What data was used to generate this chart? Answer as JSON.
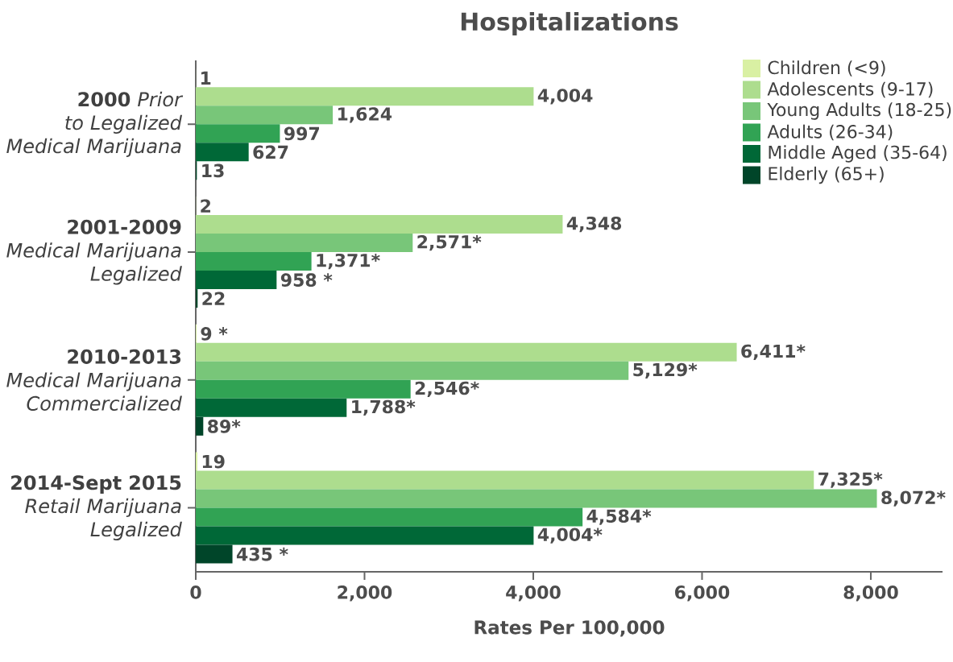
{
  "chart_data": {
    "type": "bar",
    "orientation": "horizontal",
    "title": "Hospitalizations",
    "xlabel": "Rates Per 100,000",
    "categories": [
      "**2000** *Prior to Legalized Medical Marijuana*",
      "**2001-2009** *Medical Marijuana Legalized*",
      "**2010-2013** *Medical Marijuana Commercialized*",
      "**2014-Sept 2015** *Retail Marijuana Legalized*"
    ],
    "series": [
      {
        "name": "Children (<9)",
        "color": "#d9f0a3",
        "values": [
          1,
          2,
          9,
          19
        ],
        "value_labels": [
          "1",
          "2",
          "9 *",
          "19"
        ]
      },
      {
        "name": "Adolescents (9-17)",
        "color": "#addd8e",
        "values": [
          4004,
          4348,
          6411,
          7325
        ],
        "value_labels": [
          "4,004",
          "4,348",
          "6,411*",
          "7,325*"
        ]
      },
      {
        "name": "Young Adults (18-25)",
        "color": "#78c679",
        "values": [
          1624,
          2571,
          5129,
          8072
        ],
        "value_labels": [
          "1,624",
          "2,571*",
          "5,129*",
          "8,072*"
        ]
      },
      {
        "name": "Adults (26-34)",
        "color": "#31a354",
        "values": [
          997,
          1371,
          2546,
          4584
        ],
        "value_labels": [
          "997",
          "1,371*",
          "2,546*",
          "4,584*"
        ]
      },
      {
        "name": "Middle Aged (35-64)",
        "color": "#006837",
        "values": [
          627,
          958,
          1788,
          4004
        ],
        "value_labels": [
          "627",
          "958 *",
          "1,788*",
          "4,004*"
        ]
      },
      {
        "name": "Elderly (65+)",
        "color": "#004529",
        "values": [
          13,
          22,
          89,
          435
        ],
        "value_labels": [
          "13",
          "22",
          "89*",
          "435 *"
        ]
      }
    ],
    "xlim": [
      0,
      8850
    ],
    "xticks": [
      0,
      {
        "value": 2000,
        "label": "2,000"
      },
      {
        "value": 4000,
        "label": "4,000"
      },
      {
        "value": 6000,
        "label": "6,000"
      },
      {
        "value": 8000,
        "label": "8,000"
      }
    ],
    "grid": false,
    "legend": "top right"
  }
}
